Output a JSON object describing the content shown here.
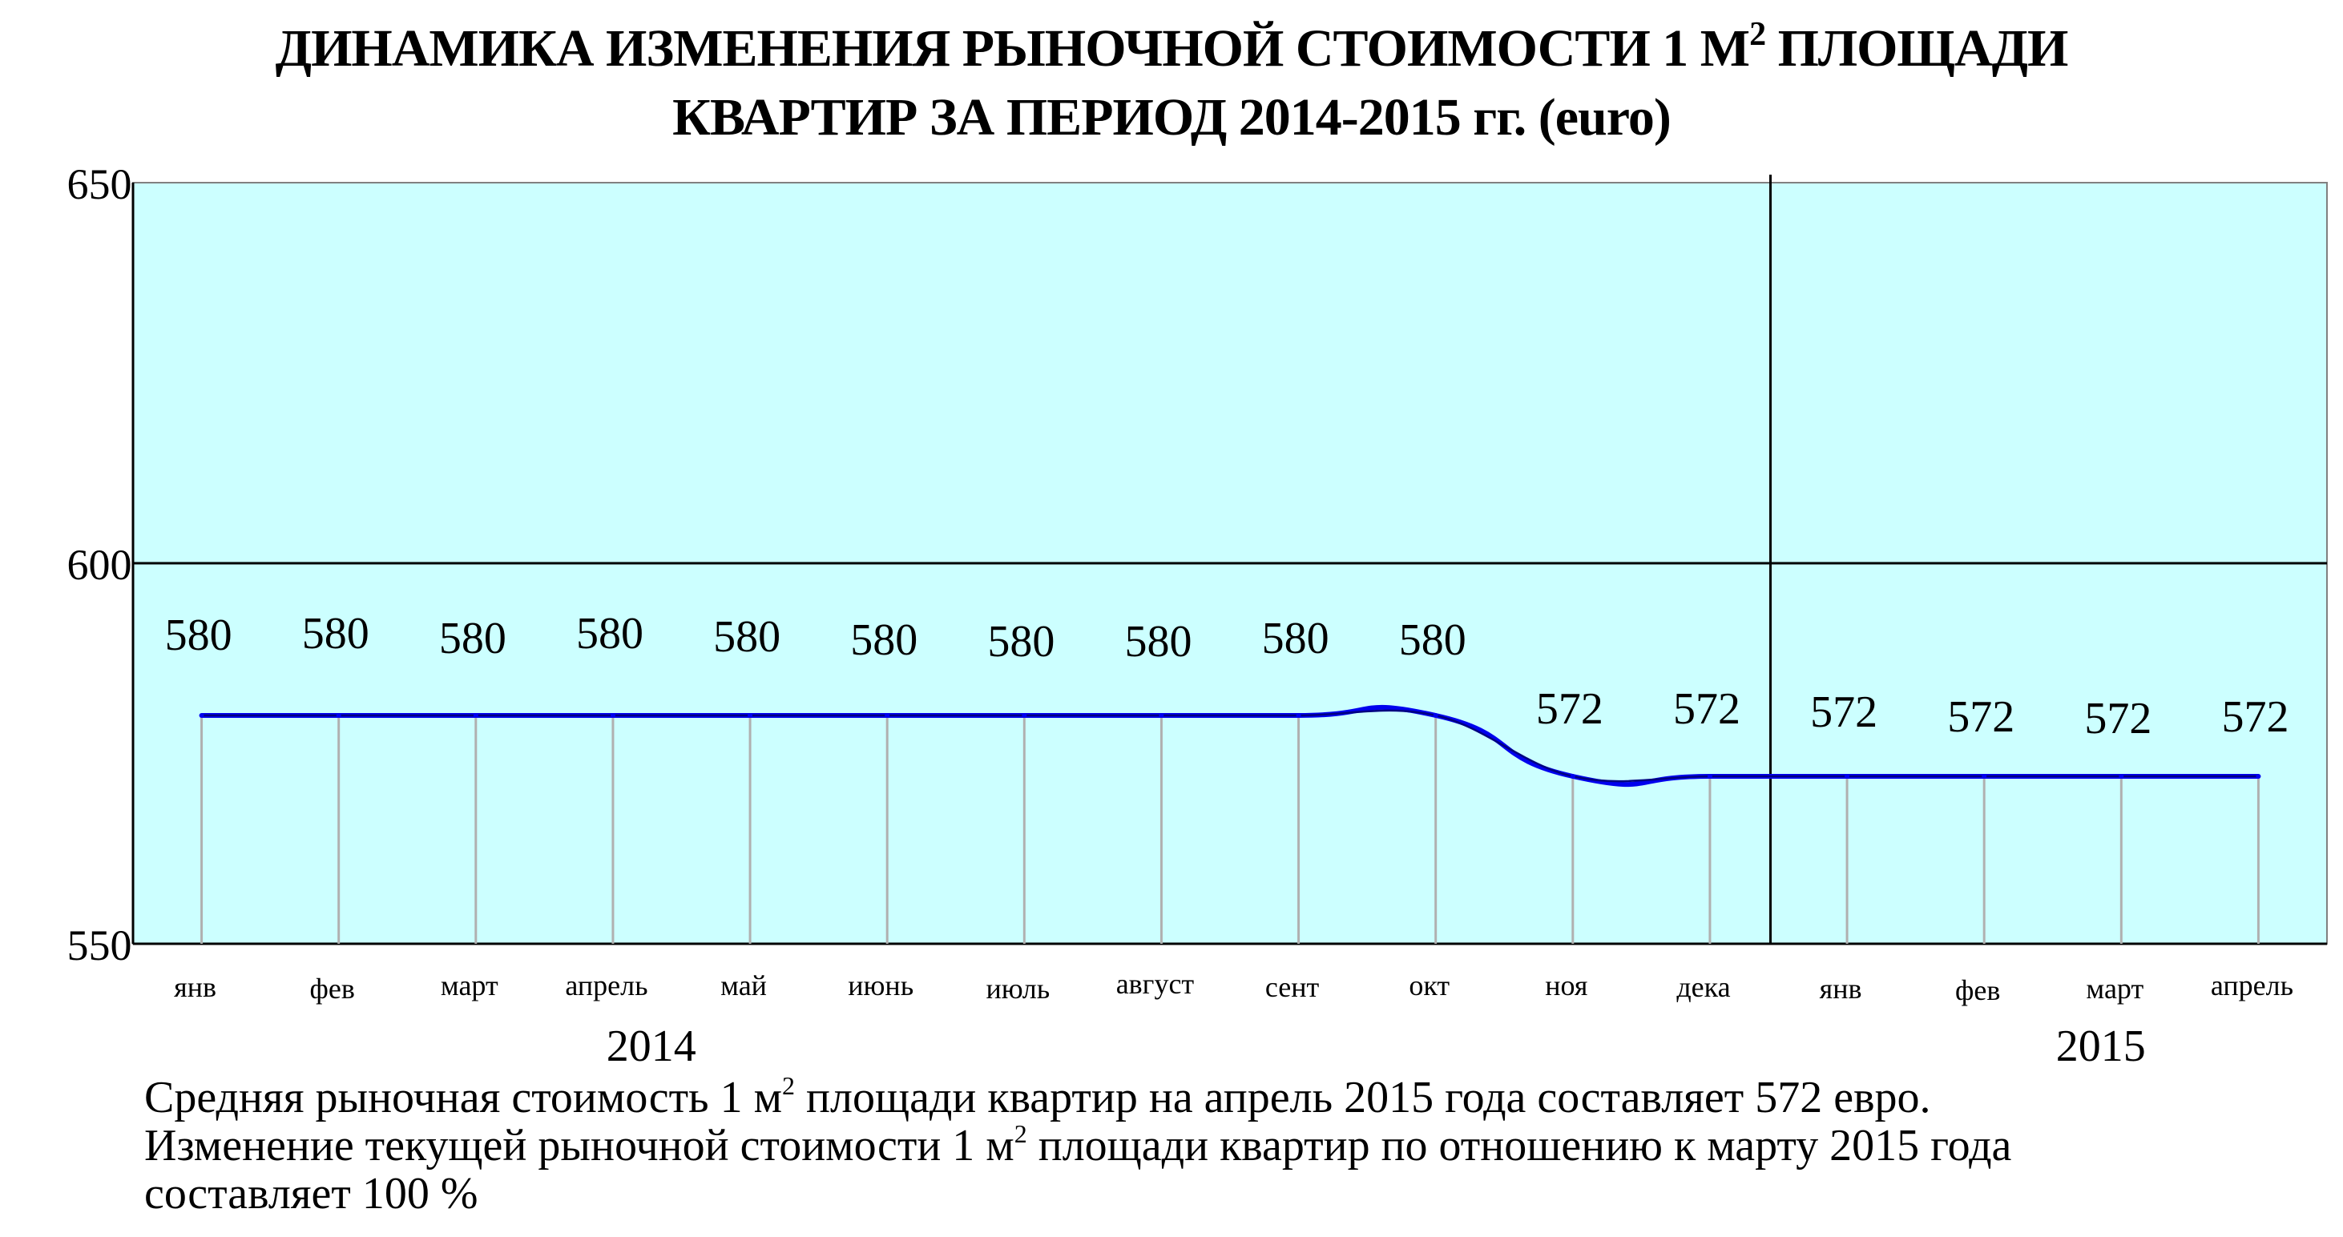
{
  "title": {
    "line1_part1": "ДИНАМИКА ИЗМЕНЕНИЯ РЫНОЧНОЙ СТОИМОСТИ 1 М",
    "line1_sup": "2",
    "line1_part2": " ПЛОЩАДИ",
    "line2": "КВАРТИР ЗА ПЕРИОД 2014-2015 гг. (euro)"
  },
  "colors": {
    "plot_background": "#ccffff",
    "series_main": "#0000ee",
    "series_thin": "#000080",
    "drop_lines": "#b0b0b0",
    "axis": "#000000"
  },
  "chart_data": {
    "type": "line",
    "ylim": [
      550,
      650
    ],
    "yticks": [
      550,
      600,
      650
    ],
    "categories": [
      "янв",
      "фев",
      "март",
      "апрель",
      "май",
      "июнь",
      "июль",
      "август",
      "сент",
      "окт",
      "ноя",
      "дека",
      "янв",
      "фев",
      "март",
      "апрель"
    ],
    "years": [
      {
        "label": "2014",
        "from_index": 0,
        "to_index": 11
      },
      {
        "label": "2015",
        "from_index": 12,
        "to_index": 15
      }
    ],
    "year_divider_after_index": 11,
    "series": [
      {
        "style": "thick",
        "values": [
          580,
          580,
          580,
          580,
          580,
          580,
          580,
          580,
          580,
          580,
          572,
          572,
          572,
          572,
          572,
          572
        ]
      },
      {
        "style": "thin",
        "values": [
          580,
          580,
          580,
          580,
          580,
          580,
          580,
          580,
          580,
          580,
          572,
          572,
          572,
          572,
          572,
          572
        ]
      }
    ],
    "data_labels": [
      "580",
      "580",
      "580",
      "580",
      "580",
      "580",
      "580",
      "580",
      "580",
      "580",
      "572",
      "572",
      "572",
      "572",
      "572",
      "572"
    ],
    "drop_lines": true,
    "gridlines": [
      600
    ]
  },
  "footer": {
    "line1_part1": "Средняя рыночная стоимость 1 м",
    "line1_sup": "2",
    "line1_part2": " площади квартир на апрель 2015 года составляет 572 евро.",
    "line2_part1": "Изменение текущей рыночной стоимости 1 м",
    "line2_sup": "2",
    "line2_part2": " площади квартир по отношению к марту 2015 года",
    "line3": "составляет  100  %"
  }
}
